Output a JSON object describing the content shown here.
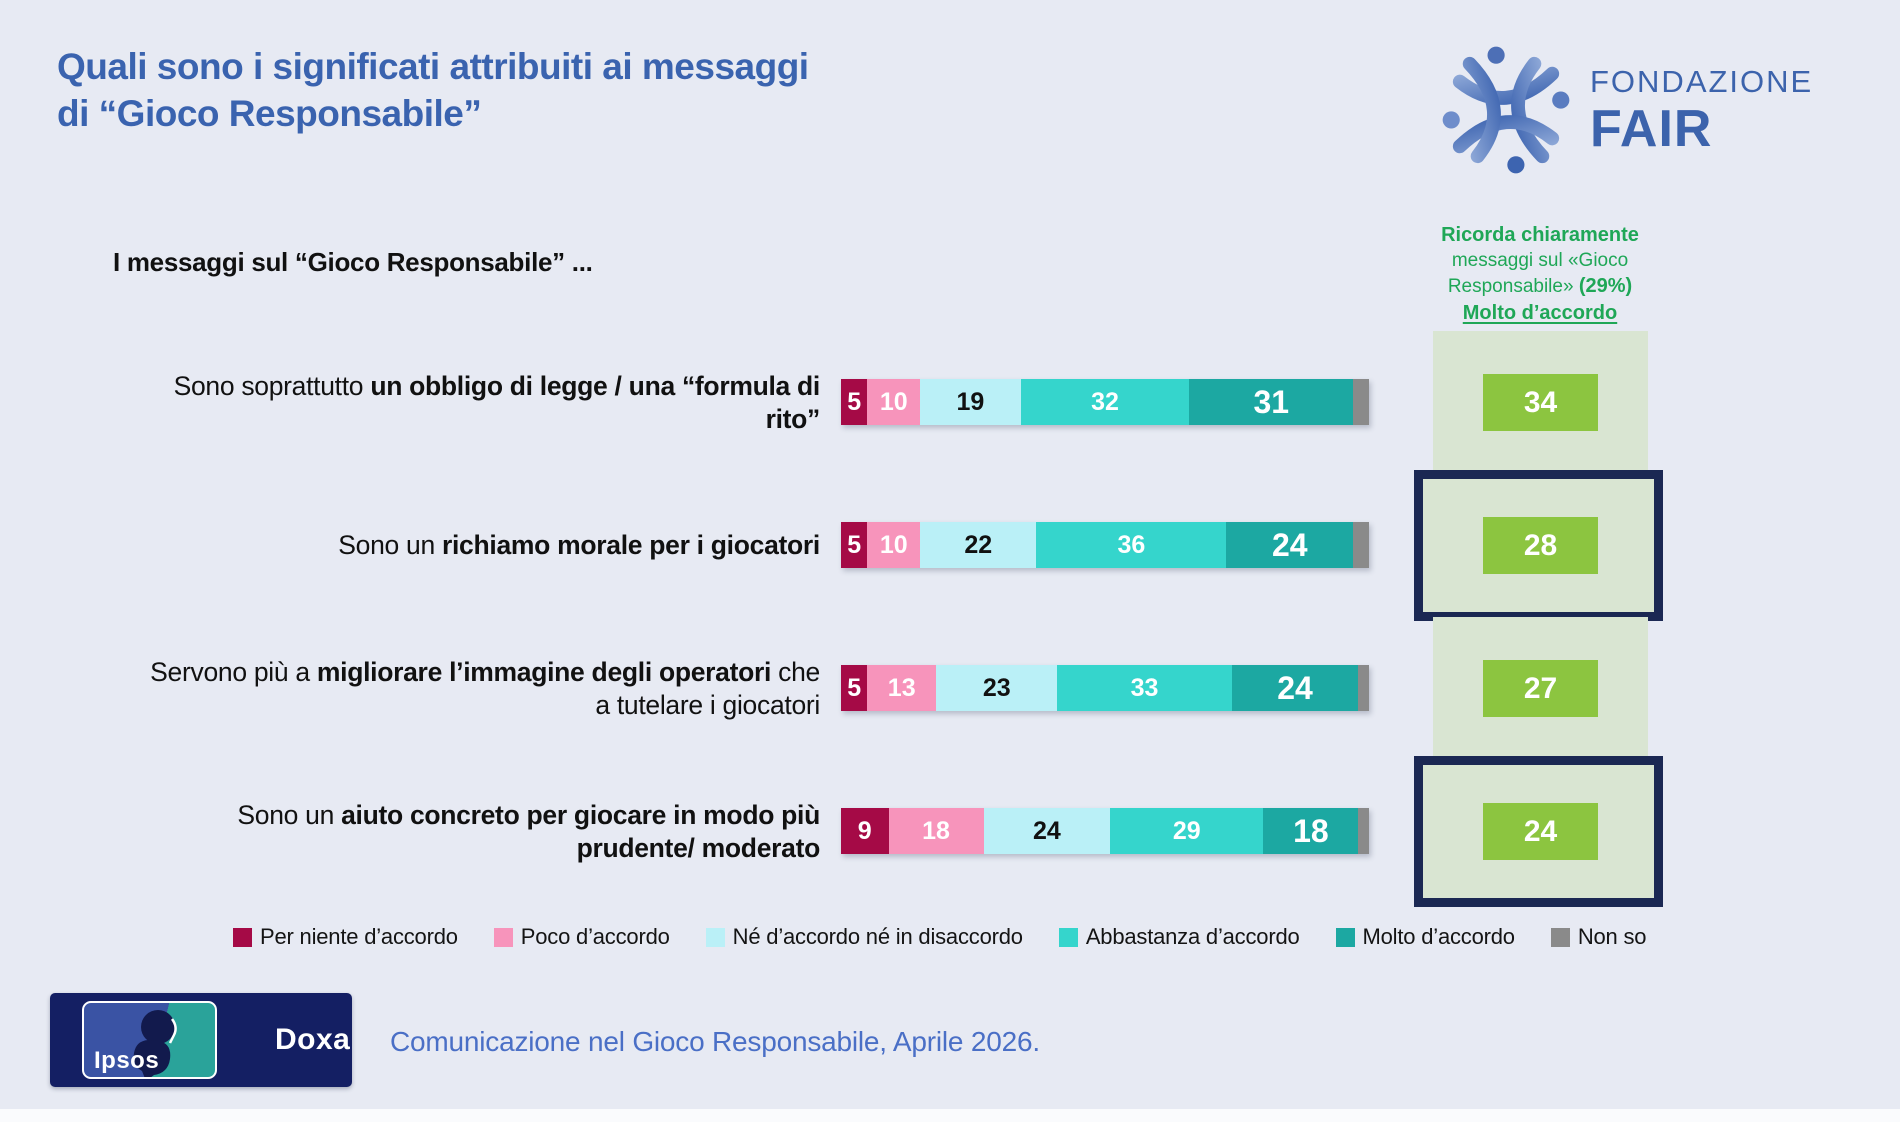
{
  "page": {
    "title_line1": "Quali sono i significati attribuiti ai messaggi",
    "title_line2": "di “Gioco Responsabile”",
    "source_text": "Comunicazione nel Gioco Responsabile, Aprile 2026."
  },
  "brand": {
    "fondazione": "FONDAZIONE",
    "fair": "FAIR",
    "ipsos": "Ipsos",
    "doxa": "Doxa"
  },
  "chart_data": {
    "type": "bar",
    "variant": "horizontal-stacked",
    "unit": "%",
    "xlim": [
      0,
      100
    ],
    "header": "I messaggi sul “Gioco Responsabile” ...",
    "legend": [
      "Per niente d’accordo",
      "Poco d’accordo",
      "Né d’accordo né in disaccordo",
      "Abbastanza d’accordo",
      "Molto d’accordo",
      "Non so"
    ],
    "colors": [
      "#A50A46",
      "#F794BB",
      "#BAF0F7",
      "#35D5CC",
      "#1CA8A2",
      "#8A8A8A"
    ],
    "annotation": {
      "line1": "Ricorda chiaramente",
      "line2": "messaggi sul «Gioco",
      "line3_regular": "Responsabile» ",
      "line3_bold": "(29%)",
      "line4": "Molto d’accordo"
    },
    "recall_column": {
      "background": "#D9E5D2",
      "badge_color": "#8CC540",
      "highlight_border": "#1B2853"
    },
    "rows": [
      {
        "label_pre": "Sono soprattutto ",
        "label_bold": "un obbligo di legge / una “formula di rito”",
        "label_post": "",
        "values": [
          5,
          10,
          19,
          32,
          31,
          3
        ],
        "recall": 34,
        "highlighted": false
      },
      {
        "label_pre": "Sono un ",
        "label_bold": "richiamo morale per i giocatori",
        "label_post": "",
        "values": [
          5,
          10,
          22,
          36,
          24,
          3
        ],
        "recall": 28,
        "highlighted": true
      },
      {
        "label_pre": "Servono più a ",
        "label_bold": "migliorare l’immagine degli operatori",
        "label_post": " che a tutelare i giocatori",
        "values": [
          5,
          13,
          23,
          33,
          24,
          2
        ],
        "recall": 27,
        "highlighted": false
      },
      {
        "label_pre": "Sono un ",
        "label_bold": "aiuto concreto per giocare in modo più prudente/ moderato",
        "label_post": "",
        "values": [
          9,
          18,
          24,
          29,
          18,
          2
        ],
        "recall": 24,
        "highlighted": true
      }
    ]
  }
}
